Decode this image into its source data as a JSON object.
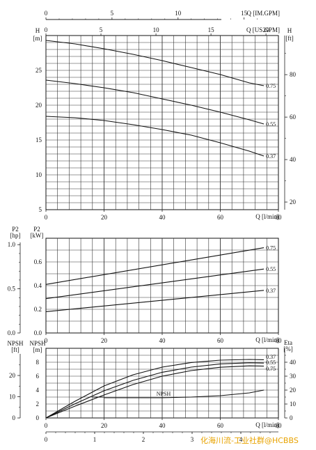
{
  "watermark": "化海川流-工业社群@HCBBS",
  "chart_data": [
    {
      "type": "line",
      "panel": "head",
      "x_axis": {
        "label": "Q [l/min]",
        "range": [
          0,
          80
        ],
        "ticks": [
          0,
          20,
          40,
          60,
          80
        ]
      },
      "top_axis_1": {
        "label": "Q [IM.GPM]",
        "range": [
          0,
          17.6
        ],
        "ticks": [
          0,
          5,
          10,
          15
        ]
      },
      "top_axis_2": {
        "label": "Q [US.GPM]",
        "range": [
          0,
          21.13
        ],
        "ticks": [
          0,
          5,
          10,
          15,
          20
        ]
      },
      "left_axis": {
        "label": "H",
        "unit": "[m]",
        "range": [
          5,
          30
        ],
        "ticks": [
          5,
          10,
          15,
          20,
          25
        ]
      },
      "right_axis": {
        "label": "H",
        "unit": "[ft]",
        "ticks": [
          20,
          40,
          60,
          80
        ]
      },
      "grid": true,
      "series": [
        {
          "name": "0.75",
          "x": [
            0,
            10,
            20,
            30,
            40,
            50,
            60,
            70,
            75
          ],
          "y": [
            29.3,
            28.8,
            28.1,
            27.3,
            26.4,
            25.4,
            24.4,
            23.2,
            22.8
          ]
        },
        {
          "name": "0.55",
          "x": [
            0,
            10,
            20,
            30,
            40,
            50,
            60,
            70,
            75
          ],
          "y": [
            23.6,
            23.1,
            22.5,
            21.8,
            20.9,
            20.0,
            19.0,
            17.9,
            17.3
          ]
        },
        {
          "name": "0.37",
          "x": [
            0,
            10,
            20,
            30,
            40,
            50,
            60,
            70,
            75
          ],
          "y": [
            18.4,
            18.2,
            17.8,
            17.2,
            16.5,
            15.7,
            14.6,
            13.4,
            12.7
          ]
        }
      ]
    },
    {
      "type": "line",
      "panel": "power",
      "x_axis": {
        "label": "Q [l/min]",
        "range": [
          0,
          80
        ],
        "ticks": [
          0,
          20,
          40,
          60,
          80
        ]
      },
      "left_axis_outer": {
        "label": "P2",
        "unit": "[hp]",
        "ticks": [
          "0.0",
          "0.5",
          "1.0"
        ]
      },
      "left_axis": {
        "label": "P2",
        "unit": "[kW]",
        "range": [
          0,
          0.8
        ],
        "ticks": [
          "0.0",
          "0.2",
          "0.4",
          "0.6"
        ]
      },
      "grid": true,
      "series": [
        {
          "name": "0.75",
          "x": [
            0,
            75
          ],
          "y": [
            0.41,
            0.72
          ]
        },
        {
          "name": "0.55",
          "x": [
            0,
            75
          ],
          "y": [
            0.29,
            0.54
          ]
        },
        {
          "name": "0.37",
          "x": [
            0,
            75
          ],
          "y": [
            0.18,
            0.36
          ]
        }
      ]
    },
    {
      "type": "line",
      "panel": "efficiency",
      "x_axis": {
        "label": "Q [l/min]",
        "range": [
          0,
          80
        ],
        "ticks": [
          0,
          20,
          40,
          60,
          80
        ]
      },
      "bottom_axis": {
        "ticks": [
          0,
          1,
          2,
          3,
          4
        ]
      },
      "left_axis_outer": {
        "label": "NPSH",
        "unit": "[ft]",
        "ticks": [
          0,
          10,
          20
        ]
      },
      "left_axis": {
        "label": "NPSH",
        "unit": "[m]",
        "range": [
          0,
          10
        ],
        "ticks": [
          0,
          2,
          4,
          6,
          8
        ]
      },
      "right_axis": {
        "label": "Eta",
        "unit": "[%]",
        "range": [
          0,
          50
        ],
        "ticks": [
          0,
          10,
          20,
          30,
          40
        ]
      },
      "grid": true,
      "series": [
        {
          "name": "0.37",
          "x": [
            0,
            10,
            20,
            30,
            40,
            50,
            60,
            70,
            75
          ],
          "y": [
            0,
            12.0,
            23.0,
            31.0,
            36.5,
            39.8,
            41.5,
            42.0,
            41.8
          ]
        },
        {
          "name": "0.55",
          "x": [
            0,
            10,
            20,
            30,
            40,
            50,
            60,
            70,
            75
          ],
          "y": [
            0,
            10.2,
            19.5,
            27.0,
            32.8,
            36.5,
            38.8,
            39.6,
            39.4
          ]
        },
        {
          "name": "0.75",
          "x": [
            0,
            10,
            20,
            30,
            40,
            50,
            60,
            70,
            75
          ],
          "y": [
            0,
            8.5,
            16.5,
            24.0,
            30.0,
            34.0,
            36.4,
            37.4,
            37.2
          ]
        },
        {
          "name": "NPSH",
          "x": [
            20,
            30,
            40,
            50,
            60,
            70,
            75
          ],
          "y": [
            2.9,
            2.9,
            2.9,
            3.0,
            3.2,
            3.6,
            4.0
          ]
        }
      ]
    }
  ]
}
